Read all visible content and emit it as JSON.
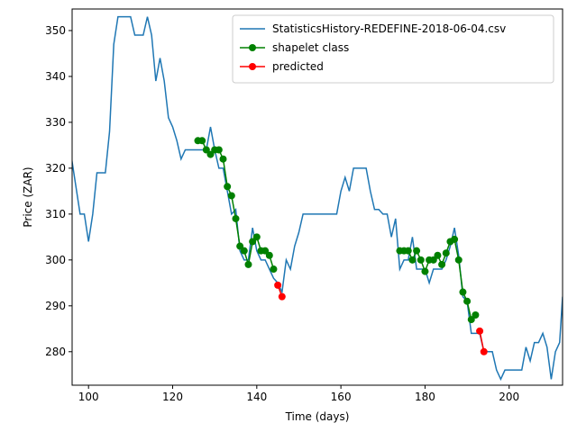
{
  "chart_data": {
    "type": "line",
    "xlabel": "Time (days)",
    "ylabel": "Price (ZAR)",
    "xlim": [
      96.1,
      212.7
    ],
    "ylim": [
      272.7,
      354.7
    ],
    "xticks": [
      100,
      120,
      140,
      160,
      180,
      200
    ],
    "yticks": [
      280,
      290,
      300,
      310,
      320,
      330,
      340,
      350
    ],
    "legend": "upper right",
    "series": [
      {
        "name": "StatisticsHistory-REDEFINE-2018-06-04.csv",
        "color": "#1f77b4",
        "marker": false,
        "x": [
          96,
          97,
          98,
          99,
          100,
          101,
          102,
          103,
          104,
          105,
          106,
          107,
          108,
          109,
          110,
          111,
          112,
          113,
          114,
          115,
          116,
          117,
          118,
          119,
          120,
          121,
          122,
          123,
          124,
          125,
          126,
          127,
          128,
          129,
          130,
          131,
          132,
          133,
          134,
          135,
          136,
          137,
          138,
          139,
          140,
          141,
          142,
          143,
          144,
          145,
          146,
          147,
          148,
          149,
          150,
          151,
          152,
          153,
          154,
          155,
          156,
          157,
          158,
          159,
          160,
          161,
          162,
          163,
          164,
          165,
          166,
          167,
          168,
          169,
          170,
          171,
          172,
          173,
          174,
          175,
          176,
          177,
          178,
          179,
          180,
          181,
          182,
          183,
          184,
          185,
          186,
          187,
          188,
          189,
          190,
          191,
          192,
          193,
          194,
          195,
          196,
          197,
          198,
          199,
          200,
          201,
          202,
          203,
          204,
          205,
          206,
          207,
          208,
          209,
          210,
          211,
          212,
          212.7
        ],
        "values": [
          322,
          316,
          310,
          310,
          304,
          310,
          319,
          319,
          319,
          328,
          347,
          353,
          353,
          353,
          353,
          349,
          349,
          349,
          353,
          349,
          339,
          344,
          339,
          331,
          329,
          326,
          322,
          324,
          324,
          324,
          324,
          324,
          324,
          329,
          324,
          320,
          320,
          315,
          310,
          311,
          302,
          300,
          300,
          307,
          302,
          300,
          300,
          298,
          296,
          295,
          293,
          300,
          298,
          303,
          306,
          310,
          310,
          310,
          310,
          310,
          310,
          310,
          310,
          310,
          315,
          318,
          315,
          320,
          320,
          320,
          320,
          315,
          311,
          311,
          310,
          310,
          305,
          309,
          298,
          300,
          300,
          305,
          298,
          298,
          298,
          295,
          298,
          298,
          298,
          300,
          303,
          307,
          301,
          292,
          291,
          284,
          284,
          284,
          280,
          280,
          280,
          276,
          274,
          276,
          276,
          276,
          276,
          276,
          281,
          278,
          282,
          282,
          284,
          281,
          274,
          280,
          282,
          292
        ]
      },
      {
        "name": "shapelet class",
        "color": "#008000",
        "marker": true,
        "x": [
          126,
          127,
          128,
          129,
          130,
          131,
          132,
          133,
          134,
          135,
          136,
          137,
          138,
          139,
          140,
          141,
          142,
          143,
          144,
          160,
          174,
          175,
          176,
          177,
          178,
          179,
          180,
          181,
          182,
          183,
          184,
          185,
          186,
          187,
          188,
          189,
          190,
          191,
          192
        ],
        "values": [
          326,
          326,
          324,
          323,
          324,
          324,
          322,
          316,
          314,
          309,
          303,
          302,
          299,
          304,
          305,
          302,
          302,
          301,
          298,
          null,
          302,
          302,
          302,
          300,
          302,
          300,
          297.5,
          300,
          300,
          301,
          299,
          301.5,
          304,
          304.5,
          300,
          293,
          291,
          287,
          288
        ]
      },
      {
        "name": "predicted",
        "color": "#ff0000",
        "marker": true,
        "x": [
          145,
          146,
          170,
          193,
          194
        ],
        "values": [
          294.5,
          292,
          null,
          284.5,
          280
        ]
      }
    ]
  }
}
